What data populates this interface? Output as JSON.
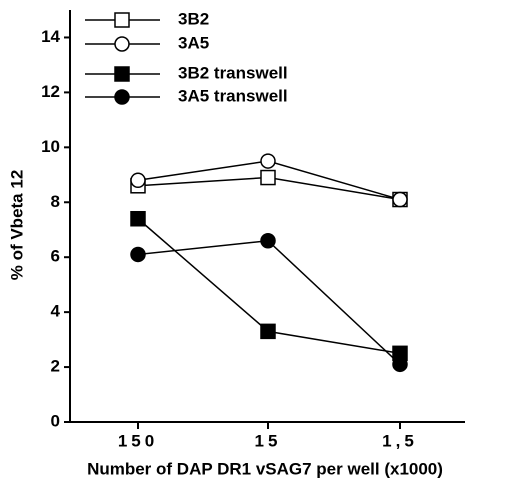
{
  "chart_data": {
    "type": "line",
    "x_label": "Number of DAP DR1 vSAG7 per well (x1000)",
    "y_label": "% of Vbeta 12",
    "categories": [
      "150",
      "15",
      "1,5"
    ],
    "ylim": [
      0,
      15
    ],
    "yticks": [
      0,
      2,
      4,
      6,
      8,
      10,
      12,
      14
    ],
    "legend": "upper left",
    "series": [
      {
        "name": "3B2",
        "color": "#000000",
        "marker": "square",
        "filled": false,
        "values": [
          8.6,
          8.9,
          8.1
        ]
      },
      {
        "name": "3A5",
        "color": "#000000",
        "marker": "circle",
        "filled": false,
        "values": [
          8.8,
          9.5,
          8.1
        ]
      },
      {
        "name": "3B2 transwell",
        "color": "#000000",
        "marker": "square",
        "filled": true,
        "values": [
          7.4,
          3.3,
          2.5
        ]
      },
      {
        "name": "3A5 transwell",
        "color": "#000000",
        "marker": "circle",
        "filled": true,
        "values": [
          6.1,
          6.6,
          2.1
        ]
      }
    ]
  }
}
